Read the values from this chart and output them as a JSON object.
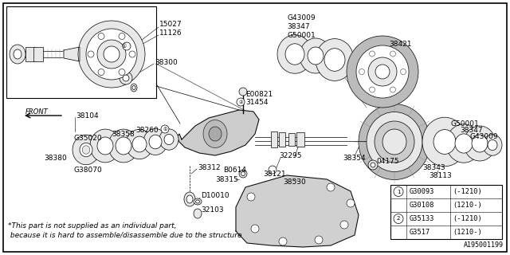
{
  "bg_color": "#ffffff",
  "diagram_id": "A195001199",
  "note_line1": "*This part is not supplied as an individual part,",
  "note_line2": " because it is hard to assemble/disassemble due to the structure",
  "legend_rows": [
    {
      "circle": "1",
      "part": "G30093",
      "range": "(-1210)"
    },
    {
      "circle": "",
      "part": "G30108",
      "range": "(1210-)"
    },
    {
      "circle": "2",
      "part": "G35133",
      "range": "(-1210)"
    },
    {
      "circle": "",
      "part": "G3517",
      "range": "(1210-)"
    }
  ]
}
